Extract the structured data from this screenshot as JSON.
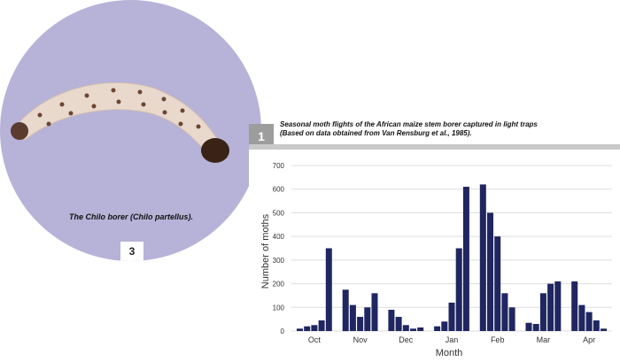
{
  "photo": {
    "caption_italic": "The Chilo borer (",
    "caption_genus": "Chilo partellus",
    "caption_end": ").",
    "badge": "3",
    "background_color": "#b7b2d8"
  },
  "figure": {
    "badge": "1",
    "caption_line1": "Seasonal moth flights of the African maize stem borer captured in light traps",
    "caption_line2": "(Based on data obtained from Van Rensburg et al., 1985)."
  },
  "chart_data": {
    "type": "bar",
    "xlabel": "Month",
    "ylabel": "Number of moths",
    "ylim": [
      0,
      700
    ],
    "yticks": [
      0,
      100,
      200,
      300,
      400,
      500,
      600,
      700
    ],
    "month_labels": [
      "Oct",
      "Nov",
      "Dec",
      "Jan",
      "Feb",
      "Mar",
      "Apr"
    ],
    "bar_color": "#1f2660",
    "grid": true,
    "months": [
      {
        "label": "Oct",
        "values": [
          10,
          20,
          25,
          45,
          350
        ]
      },
      {
        "label": "Nov",
        "values": [
          175,
          110,
          60,
          100,
          160
        ]
      },
      {
        "label": "Dec",
        "values": [
          90,
          60,
          25,
          10,
          15
        ]
      },
      {
        "label": "Jan",
        "values": [
          20,
          40,
          120,
          350,
          610
        ]
      },
      {
        "label": "Feb",
        "values": [
          620,
          500,
          400,
          160,
          100
        ]
      },
      {
        "label": "Mar",
        "values": [
          35,
          30,
          160,
          200,
          210
        ]
      },
      {
        "label": "Apr",
        "values": [
          210,
          110,
          80,
          45,
          10
        ]
      }
    ]
  }
}
